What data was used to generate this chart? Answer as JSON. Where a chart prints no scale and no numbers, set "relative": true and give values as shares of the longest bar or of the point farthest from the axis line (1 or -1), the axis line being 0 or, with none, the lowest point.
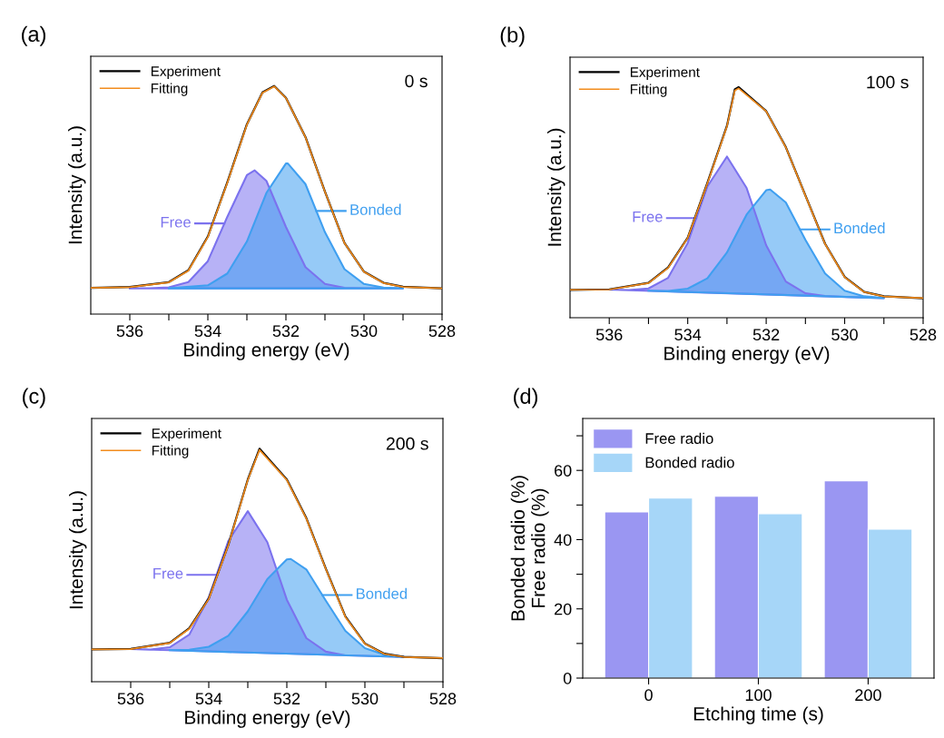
{
  "chart_data": [
    {
      "type": "line",
      "title": "(a)",
      "xlabel": "Binding energy (eV)",
      "ylabel": "Intensity (a.u.)",
      "relative": true,
      "legend": "top left",
      "annotations": [
        "0 s"
      ],
      "xlim": [
        537,
        528
      ],
      "xticks": [
        536,
        534,
        532,
        530,
        528,
        {
          "value": 535,
          "label": null
        },
        {
          "value": 533,
          "label": null
        },
        {
          "value": 531,
          "label": null
        },
        {
          "value": 529,
          "label": null
        }
      ],
      "series": [
        {
          "name": "Free",
          "type": "area",
          "color": "#7b72ee",
          "x": [
            536,
            535.5,
            535,
            534.5,
            534,
            533.5,
            533,
            532.8,
            532.5,
            532,
            531.5,
            531,
            530.5,
            530,
            529
          ],
          "values": [
            0.113,
            0.113,
            0.117,
            0.14,
            0.232,
            0.427,
            0.609,
            0.63,
            0.584,
            0.382,
            0.206,
            0.132,
            0.115,
            0.113,
            0.113
          ]
        },
        {
          "name": "Bonded",
          "type": "area",
          "color": "#3f9ff0",
          "x": [
            535,
            534,
            533.5,
            533,
            532.5,
            532,
            531.95,
            531.5,
            531,
            530.5,
            530,
            529.5,
            529
          ],
          "values": [
            0.113,
            0.126,
            0.178,
            0.318,
            0.531,
            0.66,
            0.66,
            0.57,
            0.359,
            0.197,
            0.132,
            0.116,
            0.113
          ]
        },
        {
          "name": "Experiment",
          "type": "line",
          "color": "#000000",
          "x": [
            537,
            536,
            535,
            534.5,
            534,
            533.5,
            533,
            532.6,
            532.3,
            532,
            531.5,
            531,
            530.5,
            530,
            529.5,
            529,
            528
          ],
          "values": [
            0.115,
            0.119,
            0.14,
            0.192,
            0.34,
            0.578,
            0.832,
            0.972,
            1.0,
            0.948,
            0.776,
            0.537,
            0.312,
            0.186,
            0.137,
            0.12,
            0.113
          ]
        },
        {
          "name": "Fitting",
          "type": "line",
          "color": "#f28c1c",
          "x": [
            537,
            536,
            535,
            534.5,
            534,
            533.5,
            533,
            532.6,
            532.3,
            532,
            531.5,
            531,
            530.5,
            530,
            529.5,
            529,
            528
          ],
          "values": [
            0.115,
            0.118,
            0.139,
            0.19,
            0.338,
            0.576,
            0.83,
            0.97,
            0.998,
            0.947,
            0.775,
            0.536,
            0.311,
            0.185,
            0.136,
            0.119,
            0.113
          ]
        }
      ]
    },
    {
      "type": "line",
      "title": "(b)",
      "xlabel": "Binding energy (eV)",
      "ylabel": "Intensity (a.u.)",
      "relative": true,
      "legend": "top left",
      "annotations": [
        "100 s"
      ],
      "xlim": [
        537,
        528
      ],
      "xticks": [
        536,
        534,
        532,
        530,
        528,
        {
          "value": 535,
          "label": null
        },
        {
          "value": 533,
          "label": null
        },
        {
          "value": 531,
          "label": null
        },
        {
          "value": 529,
          "label": null
        }
      ],
      "series": [
        {
          "name": "Free",
          "type": "area",
          "color": "#7b72ee",
          "x": [
            536,
            535.5,
            535,
            534.5,
            534,
            533.5,
            533,
            532.5,
            532,
            531.5,
            531,
            530.5,
            530,
            529
          ],
          "values": [
            0.122,
            0.12,
            0.127,
            0.173,
            0.324,
            0.569,
            0.699,
            0.563,
            0.314,
            0.157,
            0.106,
            0.094,
            0.09,
            0.085
          ]
        },
        {
          "name": "Bonded",
          "type": "area",
          "color": "#3f9ff0",
          "x": [
            535,
            534.5,
            534,
            533.5,
            533,
            532.5,
            532,
            531.9,
            531.5,
            531,
            530.5,
            530,
            529.5,
            529
          ],
          "values": [
            0.117,
            0.116,
            0.126,
            0.171,
            0.283,
            0.447,
            0.553,
            0.556,
            0.5,
            0.338,
            0.192,
            0.117,
            0.093,
            0.085
          ]
        },
        {
          "name": "Experiment",
          "type": "line",
          "color": "#000000",
          "x": [
            537,
            536,
            535,
            534.5,
            534,
            533.5,
            533,
            532.8,
            532.7,
            532,
            531.5,
            531,
            530.5,
            530,
            529.5,
            529,
            528
          ],
          "values": [
            0.121,
            0.123,
            0.151,
            0.218,
            0.347,
            0.584,
            0.832,
            0.99,
            1.0,
            0.896,
            0.74,
            0.53,
            0.321,
            0.177,
            0.112,
            0.093,
            0.084
          ]
        },
        {
          "name": "Fitting",
          "type": "line",
          "color": "#f28c1c",
          "x": [
            537,
            536,
            535,
            534.5,
            534,
            533.5,
            533,
            532.8,
            532.7,
            532,
            531.5,
            531,
            530.5,
            530,
            529.5,
            529,
            528
          ],
          "values": [
            0.121,
            0.122,
            0.15,
            0.216,
            0.346,
            0.582,
            0.83,
            0.985,
            0.995,
            0.895,
            0.739,
            0.529,
            0.32,
            0.176,
            0.111,
            0.092,
            0.085
          ]
        }
      ]
    },
    {
      "type": "line",
      "title": "(c)",
      "xlabel": "Binding energy (eV)",
      "ylabel": "Intensity (a.u.)",
      "relative": true,
      "legend": "top left",
      "annotations": [
        "200 s"
      ],
      "xlim": [
        537,
        528
      ],
      "xticks": [
        536,
        534,
        532,
        530,
        528,
        {
          "value": 535,
          "label": null
        },
        {
          "value": 533,
          "label": null
        },
        {
          "value": 531,
          "label": null
        },
        {
          "value": 529,
          "label": null
        }
      ],
      "series": [
        {
          "name": "Free",
          "type": "area",
          "color": "#7b72ee",
          "x": [
            536,
            535.5,
            535,
            534.5,
            534,
            533.5,
            533,
            532.5,
            532,
            531.5,
            531,
            530.5,
            530,
            529
          ],
          "values": [
            0.14,
            0.138,
            0.148,
            0.202,
            0.362,
            0.604,
            0.732,
            0.599,
            0.352,
            0.187,
            0.129,
            0.113,
            0.111,
            0.106
          ]
        },
        {
          "name": "Bonded",
          "type": "area",
          "color": "#3f9ff0",
          "x": [
            535,
            534.5,
            534,
            533.5,
            533,
            532.5,
            532,
            531.9,
            531.5,
            531,
            530.5,
            530,
            529.5,
            529
          ],
          "values": [
            0.135,
            0.137,
            0.15,
            0.197,
            0.302,
            0.44,
            0.525,
            0.527,
            0.482,
            0.348,
            0.218,
            0.144,
            0.116,
            0.106
          ]
        },
        {
          "name": "Experiment",
          "type": "line",
          "color": "#000000",
          "x": [
            537,
            536,
            535,
            534.5,
            534,
            533.5,
            533,
            532.7,
            532,
            531.5,
            531,
            530.5,
            530,
            529.5,
            529,
            528
          ],
          "values": [
            0.139,
            0.141,
            0.167,
            0.229,
            0.357,
            0.587,
            0.868,
            1.0,
            0.868,
            0.702,
            0.485,
            0.28,
            0.164,
            0.12,
            0.107,
            0.101
          ]
        },
        {
          "name": "Fitting",
          "type": "line",
          "color": "#f28c1c",
          "x": [
            537,
            536,
            535,
            534.5,
            534,
            533.5,
            533,
            532.7,
            532,
            531.5,
            531,
            530.5,
            530,
            529.5,
            529,
            528
          ],
          "values": [
            0.139,
            0.14,
            0.166,
            0.227,
            0.355,
            0.585,
            0.866,
            0.995,
            0.866,
            0.7,
            0.483,
            0.278,
            0.163,
            0.119,
            0.106,
            0.102
          ]
        }
      ]
    },
    {
      "type": "bar",
      "title": "(d)",
      "xlabel": "Etching time (s)",
      "ylabel": "Bonded radio (%)\nFree radio (%)",
      "legend": "top left",
      "categories": [
        "0",
        "100",
        "200"
      ],
      "ylim": [
        0,
        75
      ],
      "yticks": [
        0,
        20,
        40,
        60,
        {
          "value": 10,
          "label": null
        },
        {
          "value": 30,
          "label": null
        },
        {
          "value": 50,
          "label": null
        },
        {
          "value": 70,
          "label": null
        }
      ],
      "series": [
        {
          "name": "Free radio",
          "color": "#9a96f2",
          "values": [
            48,
            52.5,
            57
          ]
        },
        {
          "name": "Bonded radio",
          "color": "#a6d6f8",
          "values": [
            52,
            47.5,
            43
          ]
        }
      ]
    }
  ]
}
